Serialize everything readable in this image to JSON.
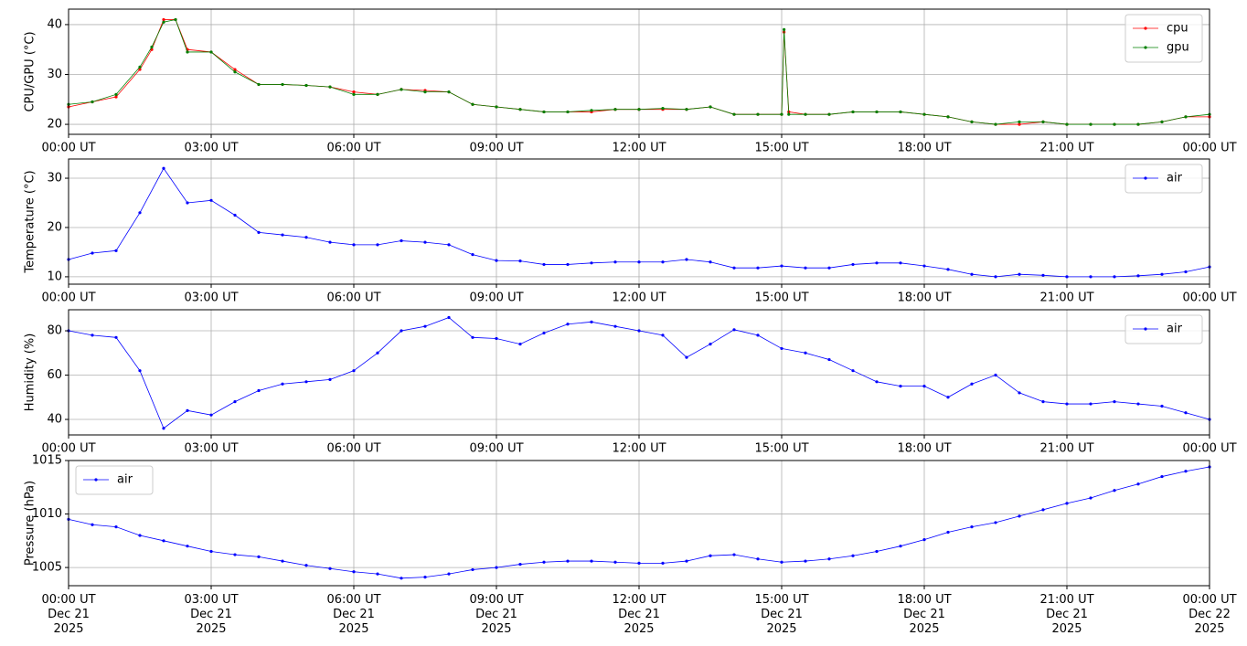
{
  "chart_data": [
    {
      "type": "line",
      "ylabel": "CPU/GPU (°C)",
      "grid": true,
      "legend": "upper right",
      "x": [
        0,
        0.5,
        1,
        1.5,
        1.75,
        2,
        2.25,
        2.5,
        3,
        3.5,
        4,
        4.5,
        5,
        5.5,
        6,
        6.5,
        7,
        7.5,
        8,
        8.5,
        9,
        9.5,
        10,
        10.5,
        11,
        11.5,
        12,
        12.5,
        13,
        13.5,
        14,
        14.5,
        15,
        15.05,
        15.15,
        15.5,
        16,
        16.5,
        17,
        17.5,
        18,
        18.5,
        19,
        19.5,
        20,
        20.5,
        21,
        21.5,
        22,
        22.5,
        23,
        23.5,
        24
      ],
      "series": [
        {
          "name": "cpu",
          "color": "#ff0000",
          "values": [
            23.5,
            24.5,
            25.5,
            31,
            35,
            41,
            41,
            35,
            34.5,
            31,
            28,
            28,
            27.8,
            27.5,
            26.5,
            26,
            27,
            26.8,
            26.5,
            24,
            23.5,
            23,
            22.5,
            22.5,
            22.5,
            23,
            23,
            23,
            23,
            23.5,
            22,
            22,
            22,
            38.5,
            22.5,
            22,
            22,
            22.5,
            22.5,
            22.5,
            22,
            21.5,
            20.5,
            20,
            20,
            20.5,
            20,
            20,
            20,
            20,
            20.5,
            21.5,
            21.5
          ]
        },
        {
          "name": "gpu",
          "color": "#008000",
          "values": [
            24,
            24.5,
            26,
            31.5,
            35.5,
            40.5,
            41,
            34.5,
            34.5,
            30.5,
            28,
            28,
            27.8,
            27.5,
            26,
            26,
            27,
            26.5,
            26.5,
            24,
            23.5,
            23,
            22.5,
            22.5,
            22.8,
            23,
            23,
            23.2,
            23,
            23.5,
            22,
            22,
            22,
            39,
            22,
            22,
            22,
            22.5,
            22.5,
            22.5,
            22,
            21.5,
            20.5,
            20,
            20.5,
            20.5,
            20,
            20,
            20,
            20,
            20.5,
            21.5,
            22
          ]
        }
      ],
      "xlim": [
        0,
        24
      ],
      "xticks": [
        {
          "value": 0,
          "label": "00:00 UT"
        },
        {
          "value": 3,
          "label": "03:00 UT"
        },
        {
          "value": 6,
          "label": "06:00 UT"
        },
        {
          "value": 9,
          "label": "09:00 UT"
        },
        {
          "value": 12,
          "label": "12:00 UT"
        },
        {
          "value": 15,
          "label": "15:00 UT"
        },
        {
          "value": 18,
          "label": "18:00 UT"
        },
        {
          "value": 21,
          "label": "21:00 UT"
        },
        {
          "value": 24,
          "label": "00:00 UT"
        }
      ],
      "ylim": [
        18,
        43.1
      ],
      "yticks": [
        20,
        30,
        40
      ]
    },
    {
      "type": "line",
      "ylabel": "Temperature (°C)",
      "grid": true,
      "legend": "upper right",
      "x": [
        0,
        0.5,
        1,
        1.5,
        2,
        2.5,
        3,
        3.5,
        4,
        4.5,
        5,
        5.5,
        6,
        6.5,
        7,
        7.5,
        8,
        8.5,
        9,
        9.5,
        10,
        10.5,
        11,
        11.5,
        12,
        12.5,
        13,
        13.5,
        14,
        14.5,
        15,
        15.5,
        16,
        16.5,
        17,
        17.5,
        18,
        18.5,
        19,
        19.5,
        20,
        20.5,
        21,
        21.5,
        22,
        22.5,
        23,
        23.5,
        24
      ],
      "series": [
        {
          "name": "air",
          "color": "#0000ff",
          "values": [
            13.5,
            14.8,
            15.3,
            23,
            32,
            25,
            25.5,
            22.5,
            19,
            18.5,
            18,
            17,
            16.5,
            16.5,
            17.3,
            17,
            16.5,
            14.5,
            13.3,
            13.2,
            12.5,
            12.5,
            12.8,
            13,
            13,
            13,
            13.5,
            13,
            11.8,
            11.8,
            12.2,
            11.8,
            11.8,
            12.5,
            12.8,
            12.8,
            12.2,
            11.5,
            10.5,
            10,
            10.5,
            10.3,
            10,
            10,
            10,
            10.2,
            10.5,
            11,
            12
          ]
        }
      ],
      "xlim": [
        0,
        24
      ],
      "xticks": [
        {
          "value": 0,
          "label": "00:00 UT"
        },
        {
          "value": 3,
          "label": "03:00 UT"
        },
        {
          "value": 6,
          "label": "06:00 UT"
        },
        {
          "value": 9,
          "label": "09:00 UT"
        },
        {
          "value": 12,
          "label": "12:00 UT"
        },
        {
          "value": 15,
          "label": "15:00 UT"
        },
        {
          "value": 18,
          "label": "18:00 UT"
        },
        {
          "value": 21,
          "label": "21:00 UT"
        },
        {
          "value": 24,
          "label": "00:00 UT"
        }
      ],
      "ylim": [
        8.5,
        33.9
      ],
      "yticks": [
        10,
        20,
        30
      ]
    },
    {
      "type": "line",
      "ylabel": "Humidity (%)",
      "grid": true,
      "legend": "upper right",
      "x": [
        0,
        0.5,
        1,
        1.5,
        2,
        2.5,
        3,
        3.5,
        4,
        4.5,
        5,
        5.5,
        6,
        6.5,
        7,
        7.5,
        8,
        8.5,
        9,
        9.5,
        10,
        10.5,
        11,
        11.5,
        12,
        12.5,
        13,
        13.5,
        14,
        14.5,
        15,
        15.5,
        16,
        16.5,
        17,
        17.5,
        18,
        18.5,
        19,
        19.5,
        20,
        20.5,
        21,
        21.5,
        22,
        22.5,
        23,
        23.5,
        24
      ],
      "series": [
        {
          "name": "air",
          "color": "#0000ff",
          "values": [
            80,
            78,
            77,
            62,
            36,
            44,
            42,
            48,
            53,
            56,
            57,
            58,
            62,
            70,
            80,
            82,
            86,
            77,
            76.5,
            74,
            79,
            83,
            84,
            82,
            80,
            78,
            68,
            74,
            80.5,
            78,
            72,
            70,
            67,
            62,
            57,
            55,
            55,
            50,
            56,
            60,
            52,
            48,
            47,
            47,
            48,
            47,
            46,
            43,
            40
          ]
        }
      ],
      "xlim": [
        0,
        24
      ],
      "xticks": [
        {
          "value": 0,
          "label": "00:00 UT"
        },
        {
          "value": 3,
          "label": "03:00 UT"
        },
        {
          "value": 6,
          "label": "06:00 UT"
        },
        {
          "value": 9,
          "label": "09:00 UT"
        },
        {
          "value": 12,
          "label": "12:00 UT"
        },
        {
          "value": 15,
          "label": "15:00 UT"
        },
        {
          "value": 18,
          "label": "18:00 UT"
        },
        {
          "value": 21,
          "label": "21:00 UT"
        },
        {
          "value": 24,
          "label": "00:00 UT"
        }
      ],
      "ylim": [
        33,
        89.5
      ],
      "yticks": [
        40,
        60,
        80
      ]
    },
    {
      "type": "line",
      "ylabel": "Pressure (hPa)",
      "grid": true,
      "legend": "upper left",
      "x": [
        0,
        0.5,
        1,
        1.5,
        2,
        2.5,
        3,
        3.5,
        4,
        4.5,
        5,
        5.5,
        6,
        6.5,
        7,
        7.5,
        8,
        8.5,
        9,
        9.5,
        10,
        10.5,
        11,
        11.5,
        12,
        12.5,
        13,
        13.5,
        14,
        14.5,
        15,
        15.5,
        16,
        16.5,
        17,
        17.5,
        18,
        18.5,
        19,
        19.5,
        20,
        20.5,
        21,
        21.5,
        22,
        22.5,
        23,
        23.5,
        24
      ],
      "series": [
        {
          "name": "air",
          "color": "#0000ff",
          "values": [
            1009.5,
            1009,
            1008.8,
            1008,
            1007.5,
            1007,
            1006.5,
            1006.2,
            1006,
            1005.6,
            1005.2,
            1004.9,
            1004.6,
            1004.4,
            1004,
            1004.1,
            1004.4,
            1004.8,
            1005,
            1005.3,
            1005.5,
            1005.6,
            1005.6,
            1005.5,
            1005.4,
            1005.4,
            1005.6,
            1006.1,
            1006.2,
            1005.8,
            1005.5,
            1005.6,
            1005.8,
            1006.1,
            1006.5,
            1007,
            1007.6,
            1008.3,
            1008.8,
            1009.2,
            1009.8,
            1010.4,
            1011,
            1011.5,
            1012.2,
            1012.8,
            1013.5,
            1014,
            1014.4
          ]
        }
      ],
      "xlim": [
        0,
        24
      ],
      "xticks": [
        {
          "value": 0,
          "label": [
            "00:00 UT",
            "Dec 21",
            "2025"
          ]
        },
        {
          "value": 3,
          "label": [
            "03:00 UT",
            "Dec 21",
            "2025"
          ]
        },
        {
          "value": 6,
          "label": [
            "06:00 UT",
            "Dec 21",
            "2025"
          ]
        },
        {
          "value": 9,
          "label": [
            "09:00 UT",
            "Dec 21",
            "2025"
          ]
        },
        {
          "value": 12,
          "label": [
            "12:00 UT",
            "Dec 21",
            "2025"
          ]
        },
        {
          "value": 15,
          "label": [
            "15:00 UT",
            "Dec 21",
            "2025"
          ]
        },
        {
          "value": 18,
          "label": [
            "18:00 UT",
            "Dec 21",
            "2025"
          ]
        },
        {
          "value": 21,
          "label": [
            "21:00 UT",
            "Dec 21",
            "2025"
          ]
        },
        {
          "value": 24,
          "label": [
            "00:00 UT",
            "Dec 22",
            "2025"
          ]
        }
      ],
      "ylim": [
        1003.3,
        1015
      ],
      "yticks": [
        1005,
        1010,
        1015
      ]
    }
  ]
}
